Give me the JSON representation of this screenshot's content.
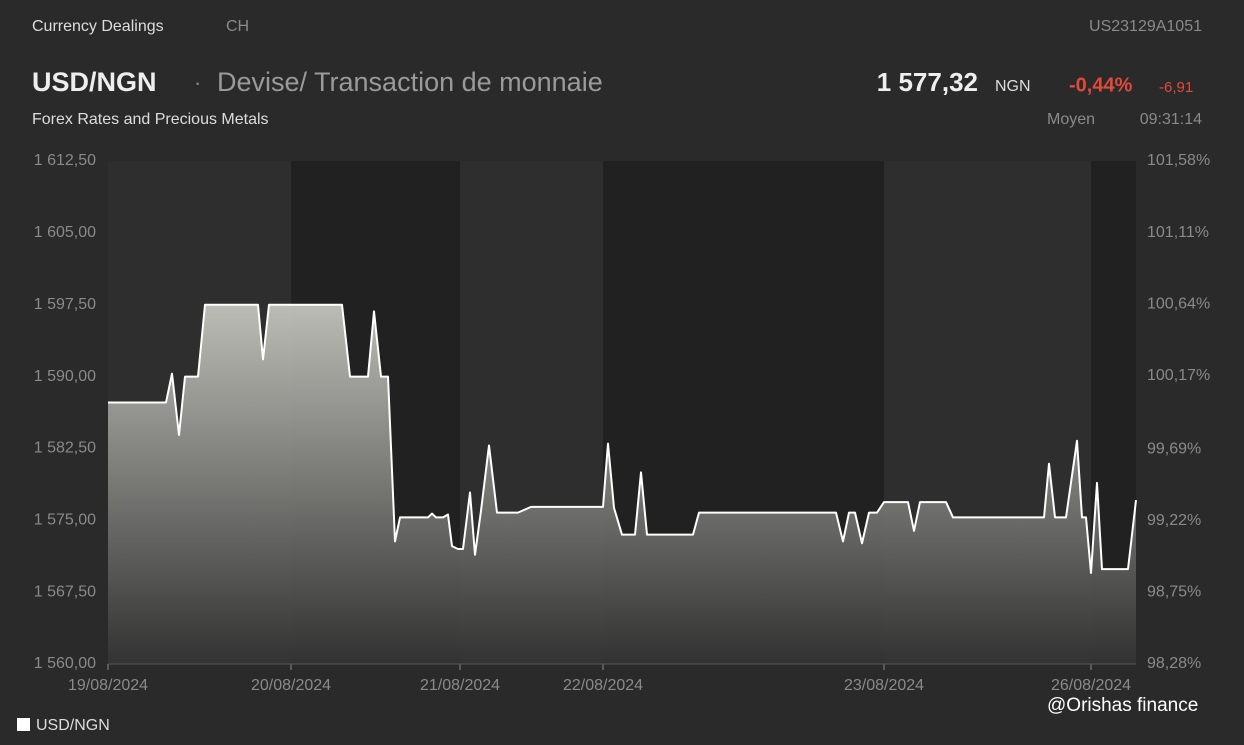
{
  "header": {
    "section": "Currency Dealings",
    "market": "CH",
    "isin": "US23129A1051",
    "symbol": "USD/NGN",
    "separator": "·",
    "description": "Devise/ Transaction de monnaie",
    "price": "1 577,32",
    "currency": "NGN",
    "change_pct": "-0,44%",
    "change_abs": "-6,91",
    "category": "Forex Rates and Precious Metals",
    "price_type": "Moyen",
    "time": "09:31:14",
    "watermark": "@Orishas finance"
  },
  "chart_data": {
    "type": "area",
    "x": [
      0,
      58,
      64,
      71,
      77,
      90,
      97,
      150,
      155,
      161,
      234,
      242,
      260,
      266,
      273,
      280,
      287,
      292,
      320,
      324,
      328,
      335,
      340,
      344,
      350,
      355,
      362,
      367,
      373,
      381,
      389,
      410,
      423,
      495,
      500,
      506,
      514,
      527,
      533,
      539,
      585,
      591,
      728,
      735,
      741,
      747,
      754,
      761,
      769,
      776,
      800,
      806,
      812,
      838,
      845,
      936,
      941,
      947,
      958,
      969,
      974,
      978,
      983,
      989,
      994,
      1020,
      1028
    ],
    "series": [
      {
        "name": "USD/NGN",
        "color": "#ffffff",
        "values": [
          1587.3,
          1587.3,
          1590.3,
          1583.9,
          1590,
          1590,
          1597.5,
          1597.5,
          1591.8,
          1597.5,
          1597.5,
          1590,
          1590,
          1596.8,
          1590,
          1590,
          1572.8,
          1575.3,
          1575.3,
          1575.7,
          1575.3,
          1575.3,
          1575.6,
          1572.3,
          1572,
          1572,
          1577.9,
          1571.4,
          1576,
          1582.8,
          1575.8,
          1575.8,
          1576.4,
          1576.4,
          1583,
          1576.3,
          1573.5,
          1573.5,
          1580,
          1573.5,
          1573.5,
          1575.8,
          1575.8,
          1572.8,
          1575.8,
          1575.8,
          1572.6,
          1575.8,
          1575.8,
          1576.9,
          1576.9,
          1573.9,
          1576.9,
          1576.9,
          1575.3,
          1575.3,
          1580.9,
          1575.3,
          1575.3,
          1583.3,
          1575.3,
          1575.3,
          1569.5,
          1578.9,
          1569.9,
          1569.9,
          1577.1
        ]
      }
    ],
    "xlim": [
      0,
      1028
    ],
    "xticks": [
      {
        "value": 0,
        "label": "19/08/2024"
      },
      {
        "value": 183,
        "label": "20/08/2024"
      },
      {
        "value": 352,
        "label": "21/08/2024"
      },
      {
        "value": 495,
        "label": "22/08/2024"
      },
      {
        "value": 776,
        "label": "23/08/2024"
      },
      {
        "value": 983,
        "label": "26/08/2024"
      }
    ],
    "ylim": [
      1560,
      1612.5
    ],
    "yticks": [
      {
        "value": 1560,
        "label": "1 560,00"
      },
      {
        "value": 1567.5,
        "label": "1 567,50"
      },
      {
        "value": 1575,
        "label": "1 575,00"
      },
      {
        "value": 1582.5,
        "label": "1 582,50"
      },
      {
        "value": 1590,
        "label": "1 590,00"
      },
      {
        "value": 1597.5,
        "label": "1 597,50"
      },
      {
        "value": 1605,
        "label": "1 605,00"
      },
      {
        "value": 1612.5,
        "label": "1 612,50"
      }
    ],
    "y2lim": [
      98.28,
      101.58
    ],
    "y2ticks": [
      {
        "value": 98.28,
        "label": "98,28%"
      },
      {
        "value": 98.75,
        "label": "98,75%"
      },
      {
        "value": 99.22,
        "label": "99,22%"
      },
      {
        "value": 99.69,
        "label": "99,69%"
      },
      {
        "value": 100.17,
        "label": "100,17%"
      },
      {
        "value": 100.64,
        "label": "100,64%"
      },
      {
        "value": 101.11,
        "label": "101,11%"
      },
      {
        "value": 101.58,
        "label": "101,58%"
      }
    ],
    "grid": false
  }
}
